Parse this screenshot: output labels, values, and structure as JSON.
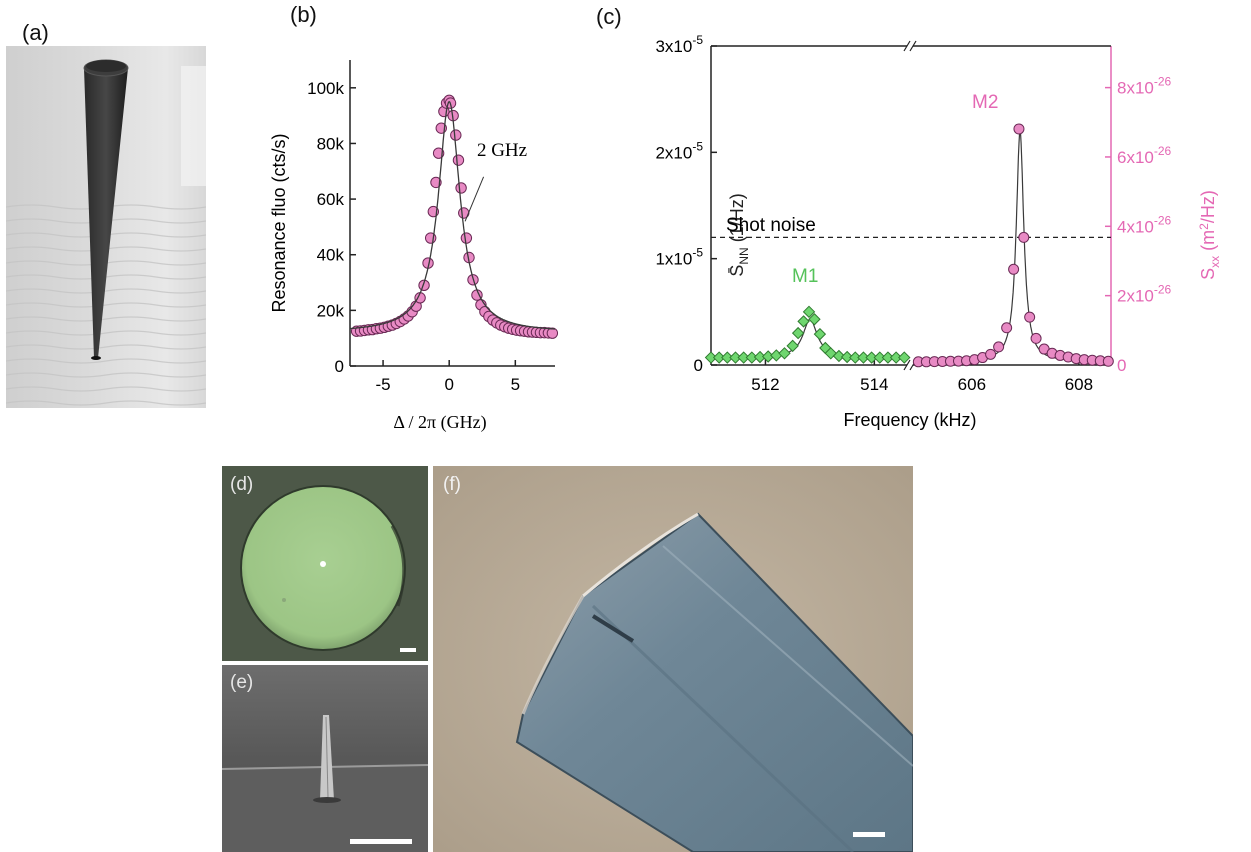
{
  "panels": {
    "a": "(a)",
    "b": "(b)",
    "c": "(c)",
    "d": "(d)",
    "e": "(e)",
    "f": "(f)"
  },
  "colors": {
    "pink": "#e468b4",
    "pink_marker": "#e88ac4",
    "green": "#6fd66f",
    "green_label": "#55c25a",
    "axis": "#222222"
  },
  "chart_data": [
    {
      "id": "b",
      "type": "scatter",
      "xlabel": "Δ / 2π (GHz)",
      "ylabel": "Resonance fluo (cts/s)",
      "xlim": [
        -7.5,
        8
      ],
      "ylim": [
        0,
        110000
      ],
      "x_ticks": [
        -5,
        0,
        5
      ],
      "x_tick_labels": [
        "-5",
        "0",
        "5"
      ],
      "y_ticks": [
        0,
        20000,
        40000,
        60000,
        80000,
        100000
      ],
      "y_tick_labels": [
        "0",
        "20k",
        "40k",
        "60k",
        "80k",
        "100k"
      ],
      "annotation": "2 GHz",
      "fit": {
        "model": "lorentzian",
        "center": 0,
        "fwhm": 2,
        "peak": 95000,
        "baseline": 12000
      },
      "series": [
        {
          "x": [
            -7.0,
            -6.7,
            -6.4,
            -6.1,
            -5.8,
            -5.5,
            -5.2,
            -4.9,
            -4.6,
            -4.3,
            -4.0,
            -3.7,
            -3.4,
            -3.1,
            -2.8,
            -2.5,
            -2.2,
            -1.9,
            -1.6,
            -1.4,
            -1.2,
            -1.0,
            -0.8,
            -0.6,
            -0.4,
            -0.2,
            0.0,
            0.1,
            0.3,
            0.5,
            0.7,
            0.9,
            1.1,
            1.3,
            1.5,
            1.8,
            2.1,
            2.4,
            2.7,
            3.0,
            3.3,
            3.6,
            3.9,
            4.2,
            4.5,
            4.8,
            5.1,
            5.4,
            5.7,
            6.0,
            6.3,
            6.6,
            6.9,
            7.2,
            7.5,
            7.8
          ],
          "y": [
            12500,
            12600,
            12800,
            13000,
            13100,
            13400,
            13600,
            13900,
            14300,
            14700,
            15300,
            16000,
            16900,
            18000,
            19500,
            21500,
            24500,
            29000,
            37000,
            46000,
            55500,
            66000,
            76500,
            85500,
            91500,
            94500,
            95500,
            94500,
            90000,
            83000,
            74000,
            64000,
            55000,
            46000,
            39000,
            31000,
            25500,
            22000,
            19500,
            17800,
            16500,
            15500,
            14700,
            14100,
            13600,
            13200,
            12900,
            12700,
            12500,
            12300,
            12200,
            12100,
            12000,
            12000,
            11900,
            11800
          ]
        }
      ]
    },
    {
      "id": "c",
      "type": "scatter",
      "xlabel": "Frequency (kHz)",
      "ylabel_left": "S̄NN (1/Hz)",
      "ylabel_right": "Sxx (m²/Hz)",
      "ylim_left": [
        0,
        3e-05
      ],
      "ylim_right": [
        0,
        9.2e-26
      ],
      "left_ticks": [
        "0",
        "1x10-5",
        "2x10-5",
        "3x10-5"
      ],
      "right_ticks": [
        "0",
        "2x10-26",
        "4x10-26",
        "6x10-26",
        "8x10-26"
      ],
      "shot_noise": {
        "label": "Shot noise",
        "value": 1.2e-05
      },
      "segments": [
        {
          "xlim": [
            511,
            514.6
          ],
          "x_ticks": [
            "512",
            "514"
          ]
        },
        {
          "xlim": [
            604.9,
            608.6
          ],
          "x_ticks": [
            "606",
            "608"
          ]
        }
      ],
      "series": [
        {
          "name": "M1",
          "segment": 0,
          "marker": "diamond",
          "x": [
            511.0,
            511.15,
            511.3,
            511.45,
            511.6,
            511.75,
            511.9,
            512.05,
            512.2,
            512.35,
            512.5,
            512.6,
            512.7,
            512.8,
            512.9,
            513.0,
            513.1,
            513.2,
            513.35,
            513.5,
            513.65,
            513.8,
            513.95,
            514.1,
            514.25,
            514.4,
            514.55
          ],
          "y": [
            7e-07,
            7e-07,
            7e-07,
            7e-07,
            7e-07,
            7e-07,
            7.5e-07,
            8e-07,
            9e-07,
            1.1e-06,
            1.8e-06,
            3e-06,
            4.1e-06,
            5e-06,
            4.3e-06,
            2.9e-06,
            1.6e-06,
            1.1e-06,
            8.5e-07,
            7.5e-07,
            7e-07,
            7e-07,
            7e-07,
            7e-07,
            7e-07,
            7e-07,
            7e-07
          ]
        },
        {
          "name": "M2",
          "segment": 1,
          "marker": "circle",
          "x": [
            605.0,
            605.15,
            605.3,
            605.45,
            605.6,
            605.75,
            605.9,
            606.05,
            606.2,
            606.35,
            606.5,
            606.65,
            606.78,
            606.88,
            606.97,
            607.08,
            607.2,
            607.35,
            607.5,
            607.65,
            607.8,
            607.95,
            608.1,
            608.25,
            608.4,
            608.55
          ],
          "y": [
            3e-07,
            3e-07,
            3.2e-07,
            3.3e-07,
            3.5e-07,
            3.7e-07,
            4e-07,
            5e-07,
            7e-07,
            1e-06,
            1.7e-06,
            3.5e-06,
            9e-06,
            2.22e-05,
            1.2e-05,
            4.5e-06,
            2.5e-06,
            1.5e-06,
            1.1e-06,
            9e-07,
            7.5e-07,
            6e-07,
            5e-07,
            4.5e-07,
            4e-07,
            3.5e-07
          ]
        }
      ],
      "fits": [
        {
          "segment": 0,
          "model": "lorentzian",
          "center": 512.82,
          "fwhm": 0.32,
          "peak": 4.3e-06,
          "baseline": 7e-07
        },
        {
          "segment": 1,
          "model": "lorentzian",
          "center": 606.9,
          "fwhm": 0.17,
          "peak": 2.2e-05,
          "baseline": 3e-07
        }
      ]
    }
  ]
}
